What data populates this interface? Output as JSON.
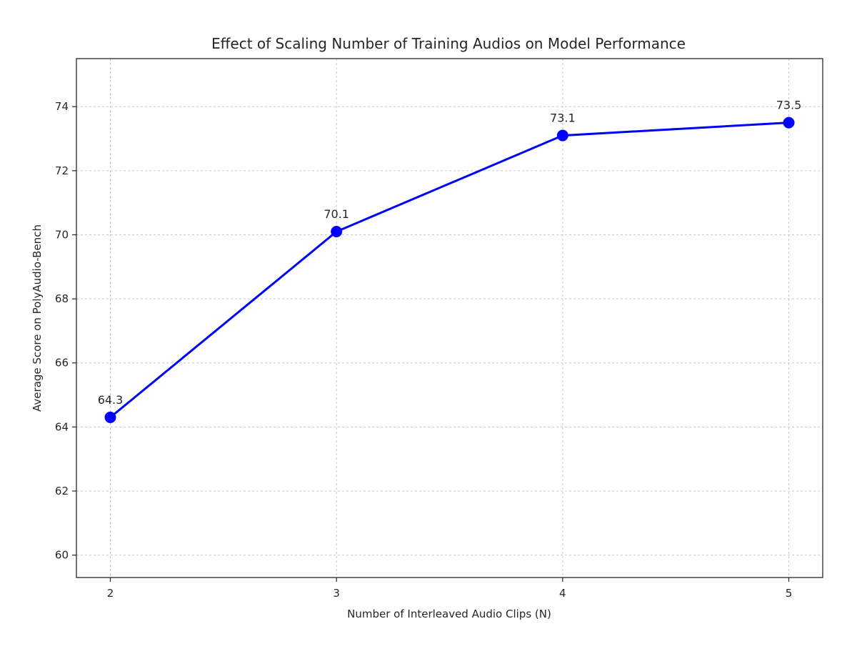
{
  "chart_data": {
    "type": "line",
    "title": "Effect of Scaling Number of Training Audios on Model Performance",
    "xlabel": "Number of Interleaved Audio Clips (N)",
    "ylabel": "Average Score on PolyAudio-Bench",
    "x": [
      2,
      3,
      4,
      5
    ],
    "x_tick_labels": [
      "2",
      "3",
      "4",
      "5"
    ],
    "series": [
      {
        "values": [
          64.3,
          70.1,
          73.1,
          73.5
        ],
        "data_labels": [
          "64.3",
          "70.1",
          "73.1",
          "73.5"
        ],
        "color": "#0000ff",
        "marker": "circle"
      }
    ],
    "y_ticks": [
      60,
      62,
      64,
      66,
      68,
      70,
      72,
      74
    ],
    "y_tick_labels": [
      "60",
      "62",
      "64",
      "66",
      "68",
      "70",
      "72",
      "74"
    ],
    "xlim": [
      1.85,
      5.15
    ],
    "ylim": [
      59.3,
      75.5
    ],
    "grid": true
  }
}
